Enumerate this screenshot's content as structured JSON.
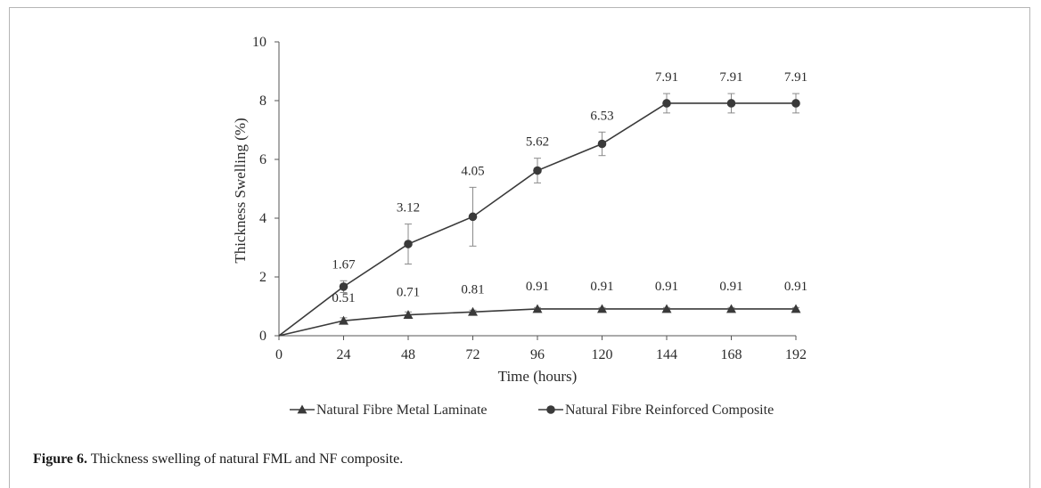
{
  "caption": {
    "label": "Figure 6.",
    "text": "Thickness swelling of natural FML and NF composite."
  },
  "chart_data": {
    "type": "line",
    "title": "",
    "xlabel": "Time (hours)",
    "ylabel": "Thickness Swelling (%)",
    "x": [
      0,
      24,
      48,
      72,
      96,
      120,
      144,
      168,
      192
    ],
    "xlim": [
      0,
      192
    ],
    "ylim": [
      0,
      10
    ],
    "yticks": [
      0,
      2,
      4,
      6,
      8,
      10
    ],
    "grid": false,
    "legend_position": "bottom",
    "series": [
      {
        "name": "Natural Fibre Metal Laminate",
        "marker": "triangle",
        "values": [
          0,
          0.51,
          0.71,
          0.81,
          0.91,
          0.91,
          0.91,
          0.91,
          0.91
        ],
        "labels": [
          "",
          "0.51",
          "0.71",
          "0.81",
          "0.91",
          "0.91",
          "0.91",
          "0.91",
          "0.91"
        ],
        "errors": [
          0,
          0.1,
          0.1,
          0.06,
          0.05,
          0.05,
          0.05,
          0.05,
          0.05
        ]
      },
      {
        "name": "Natural Fibre Reinforced Composite",
        "marker": "circle",
        "values": [
          0,
          1.67,
          3.12,
          4.05,
          5.62,
          6.53,
          7.91,
          7.91,
          7.91
        ],
        "labels": [
          "",
          "1.67",
          "3.12",
          "4.05",
          "5.62",
          "6.53",
          "7.91",
          "7.91",
          "7.91"
        ],
        "errors": [
          0,
          0.2,
          0.68,
          1.0,
          0.42,
          0.4,
          0.33,
          0.33,
          0.33
        ]
      }
    ],
    "colors": {
      "line": "#3a3a3a",
      "axis": "#555555",
      "error_bar": "#8a8a8a"
    }
  }
}
